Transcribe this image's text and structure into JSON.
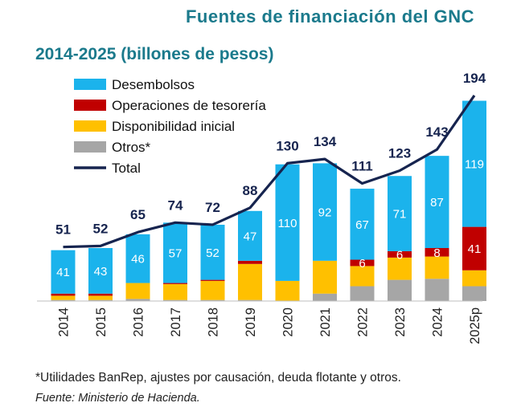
{
  "title_line1": "Fuentes de financiación del GNC",
  "title_line2": "2014-2025 (billones de pesos)",
  "footnote": "*Utilidades BanRep, ajustes por causación, deuda flotante y otros.",
  "source": "Fuente: Ministerio de Hacienda.",
  "colors": {
    "desembolsos": "#1bb3ec",
    "tesoreria": "#c00000",
    "disponibilidad": "#ffc000",
    "otros": "#a6a6a6",
    "total": "#16244f"
  },
  "chart_data": {
    "type": "bar",
    "stacked": true,
    "categories": [
      "2014",
      "2015",
      "2016",
      "2017",
      "2018",
      "2019",
      "2020",
      "2021",
      "2022",
      "2023",
      "2024",
      "2025p"
    ],
    "series": [
      {
        "key": "otros",
        "name": "Otros*",
        "values": [
          1,
          1,
          2,
          1,
          1,
          1,
          0,
          7,
          14,
          20,
          21,
          14
        ]
      },
      {
        "key": "disponibilidad",
        "name": "Disponibilidad inicial",
        "values": [
          4,
          4,
          15,
          15,
          18,
          34,
          19,
          31,
          19,
          21,
          21,
          15
        ]
      },
      {
        "key": "tesoreria",
        "name": "Operaciones de tesorería",
        "values": [
          2,
          2,
          0,
          1,
          1,
          3,
          0,
          0,
          6,
          6,
          8,
          41
        ]
      },
      {
        "key": "desembolsos",
        "name": "Desembolsos",
        "values": [
          41,
          43,
          46,
          57,
          52,
          47,
          110,
          92,
          67,
          71,
          87,
          119
        ]
      }
    ],
    "bar_labels": {
      "desembolsos": [
        "41",
        "43",
        "46",
        "57",
        "52",
        "47",
        "110",
        "92",
        "67",
        "71",
        "87",
        "119"
      ],
      "tesoreria": [
        "",
        "",
        "",
        "",
        "",
        "",
        "",
        "",
        "6",
        "6",
        "8",
        "41"
      ]
    },
    "total": {
      "name": "Total",
      "values": [
        51,
        52,
        65,
        74,
        72,
        88,
        130,
        134,
        111,
        123,
        143,
        194
      ]
    },
    "legend": [
      "Desembolsos",
      "Operaciones de tesorería",
      "Disponibilidad inicial",
      "Otros*",
      "Total"
    ],
    "ylim": [
      0,
      200
    ],
    "xlabel": "",
    "ylabel": ""
  }
}
